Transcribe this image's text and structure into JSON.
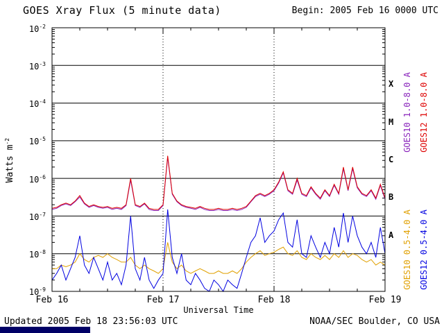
{
  "header": {
    "title": "GOES Xray Flux (5 minute data)",
    "begin_label": "Begin:  2005 Feb 16 0000 UTC"
  },
  "footer": {
    "updated": "Updated 2005 Feb 18 23:56:03 UTC",
    "credit": "NOAA/SEC Boulder, CO USA"
  },
  "right_labels": [
    {
      "text": "GOES10 1.0-8.0 A",
      "color": "#8822bb"
    },
    {
      "text": "GOES12 1.0-8.0 A",
      "color": "#dd0000"
    },
    {
      "text": "GOES10 0.5-4.0 A",
      "color": "#e0a000"
    },
    {
      "text": "GOES12 0.5-4.0 A",
      "color": "#0000e0"
    }
  ],
  "chart_data": {
    "type": "line",
    "title": "GOES Xray Flux (5 minute data)",
    "xlabel": "Universal Time",
    "ylabel_base": "Watts m",
    "ylabel_exp": "-2",
    "y_scale": "log",
    "ylim": [
      1e-09,
      0.01
    ],
    "x_unit": "hours since 2005 Feb 16 0000 UTC",
    "x_range_hours": [
      0,
      72
    ],
    "x_step_hours": 1,
    "grid": {
      "horizontal_decades": true,
      "vertical_dotted_at_hours": [
        24,
        48
      ],
      "legend_position": "right-rotated"
    },
    "x_ticks": [
      {
        "hour": 0,
        "label": "Feb 16"
      },
      {
        "hour": 24,
        "label": "Feb 17"
      },
      {
        "hour": 48,
        "label": "Feb 18"
      },
      {
        "hour": 72,
        "label": "Feb 19"
      }
    ],
    "y_ticks": [
      {
        "base": "10",
        "exp": "-2",
        "value": 0.01
      },
      {
        "base": "10",
        "exp": "-3",
        "value": 0.001
      },
      {
        "base": "10",
        "exp": "-4",
        "value": 0.0001
      },
      {
        "base": "10",
        "exp": "-5",
        "value": 1e-05
      },
      {
        "base": "10",
        "exp": "-6",
        "value": 1e-06
      },
      {
        "base": "10",
        "exp": "-7",
        "value": 1e-07
      },
      {
        "base": "10",
        "exp": "-8",
        "value": 1e-08
      },
      {
        "base": "10",
        "exp": "-9",
        "value": 1e-09
      }
    ],
    "flare_classes": [
      {
        "label": "X",
        "band_center_exp": -3.5
      },
      {
        "label": "M",
        "band_center_exp": -4.5
      },
      {
        "label": "C",
        "band_center_exp": -5.5
      },
      {
        "label": "B",
        "band_center_exp": -6.5
      },
      {
        "label": "A",
        "band_center_exp": -7.5
      }
    ],
    "series": [
      {
        "name": "GOES10 1.0-8.0 A",
        "color": "#8822bb",
        "values": [
          1.5e-07,
          1.6e-07,
          1.9e-07,
          2.1e-07,
          1.9e-07,
          2.4e-07,
          3.2e-07,
          2.1e-07,
          1.7e-07,
          1.9e-07,
          1.7e-07,
          1.6e-07,
          1.7e-07,
          1.5e-07,
          1.6e-07,
          1.5e-07,
          1.9e-07,
          9e-07,
          1.9e-07,
          1.7e-07,
          2.1e-07,
          1.5e-07,
          1.4e-07,
          1.4e-07,
          1.9e-07,
          3.6e-06,
          3.8e-07,
          2.4e-07,
          1.9e-07,
          1.7e-07,
          1.6e-07,
          1.5e-07,
          1.7e-07,
          1.5e-07,
          1.4e-07,
          1.4e-07,
          1.5e-07,
          1.4e-07,
          1.4e-07,
          1.5e-07,
          1.4e-07,
          1.5e-07,
          1.7e-07,
          2.4e-07,
          3.3e-07,
          3.8e-07,
          3.3e-07,
          3.8e-07,
          4.7e-07,
          7.5e-07,
          1.4e-06,
          4.7e-07,
          3.8e-07,
          9e-07,
          3.8e-07,
          3.3e-07,
          5.6e-07,
          3.8e-07,
          2.8e-07,
          4.7e-07,
          3.3e-07,
          6.5e-07,
          3.8e-07,
          1.8e-06,
          4.7e-07,
          1.8e-06,
          5.6e-07,
          3.8e-07,
          3.3e-07,
          4.7e-07,
          2.8e-07,
          6.5e-07,
          2.8e-07
        ]
      },
      {
        "name": "GOES12 1.0-8.0 A",
        "color": "#dd0000",
        "values": [
          1.6e-07,
          1.7e-07,
          2e-07,
          2.2e-07,
          2e-07,
          2.5e-07,
          3.5e-07,
          2.2e-07,
          1.8e-07,
          2e-07,
          1.8e-07,
          1.7e-07,
          1.8e-07,
          1.6e-07,
          1.7e-07,
          1.6e-07,
          2e-07,
          1e-06,
          2e-07,
          1.8e-07,
          2.2e-07,
          1.6e-07,
          1.5e-07,
          1.5e-07,
          2e-07,
          4e-06,
          4e-07,
          2.5e-07,
          2e-07,
          1.8e-07,
          1.7e-07,
          1.6e-07,
          1.8e-07,
          1.6e-07,
          1.5e-07,
          1.5e-07,
          1.6e-07,
          1.5e-07,
          1.5e-07,
          1.6e-07,
          1.5e-07,
          1.6e-07,
          1.8e-07,
          2.5e-07,
          3.5e-07,
          4e-07,
          3.5e-07,
          4e-07,
          5e-07,
          8e-07,
          1.5e-06,
          5e-07,
          4e-07,
          1e-06,
          4e-07,
          3.5e-07,
          6e-07,
          4e-07,
          3e-07,
          5e-07,
          3.5e-07,
          7e-07,
          4e-07,
          2e-06,
          5e-07,
          2e-06,
          6e-07,
          4e-07,
          3.5e-07,
          5e-07,
          3e-07,
          7e-07,
          3e-07
        ]
      },
      {
        "name": "GOES10 0.5-4.0 A",
        "color": "#e0a000",
        "values": [
          4e-09,
          4e-09,
          5e-09,
          4.5e-09,
          5e-09,
          6e-09,
          1e-08,
          7e-09,
          6e-09,
          8e-09,
          9e-09,
          8e-09,
          1e-08,
          8e-09,
          7e-09,
          6e-09,
          6e-09,
          8e-09,
          5e-09,
          4e-09,
          5e-09,
          4e-09,
          3.5e-09,
          3e-09,
          4e-09,
          2e-08,
          6e-09,
          4e-09,
          5e-09,
          3.5e-09,
          3e-09,
          3.5e-09,
          4e-09,
          3.5e-09,
          3e-09,
          3e-09,
          3.5e-09,
          3e-09,
          3e-09,
          3.5e-09,
          3e-09,
          4e-09,
          6e-09,
          8e-09,
          1e-08,
          1.2e-08,
          9e-09,
          1e-08,
          1.1e-08,
          1.3e-08,
          1.5e-08,
          1e-08,
          9e-09,
          1.2e-08,
          8e-09,
          7e-09,
          1e-08,
          8e-09,
          7e-09,
          9e-09,
          7e-09,
          1e-08,
          8e-09,
          1.2e-08,
          8e-09,
          1e-08,
          9e-09,
          7e-09,
          6e-09,
          7e-09,
          5e-09,
          6e-09,
          5e-09
        ]
      },
      {
        "name": "GOES12 0.5-4.0 A",
        "color": "#0000e0",
        "values": [
          2e-09,
          3e-09,
          5e-09,
          2e-09,
          4e-09,
          8e-09,
          3e-08,
          5e-09,
          3e-09,
          8e-09,
          4e-09,
          2e-09,
          6e-09,
          2e-09,
          3e-09,
          1.5e-09,
          5e-09,
          1e-07,
          4e-09,
          2e-09,
          8e-09,
          2e-09,
          1.2e-09,
          2e-09,
          3e-09,
          1.5e-07,
          8e-09,
          3e-09,
          1e-08,
          2e-09,
          1.5e-09,
          3e-09,
          2e-09,
          1.2e-09,
          1e-09,
          2e-09,
          1.5e-09,
          1e-09,
          2e-09,
          1.5e-09,
          1.2e-09,
          3e-09,
          8e-09,
          2e-08,
          3e-08,
          9e-08,
          2e-08,
          3e-08,
          4e-08,
          8e-08,
          1.2e-07,
          2e-08,
          1.5e-08,
          8e-08,
          1e-08,
          8e-09,
          3e-08,
          1.5e-08,
          8e-09,
          2e-08,
          1e-08,
          5e-08,
          1.5e-08,
          1.2e-07,
          2e-08,
          1e-07,
          3e-08,
          1.5e-08,
          1e-08,
          2e-08,
          8e-09,
          5e-08,
          1e-08
        ]
      }
    ]
  }
}
